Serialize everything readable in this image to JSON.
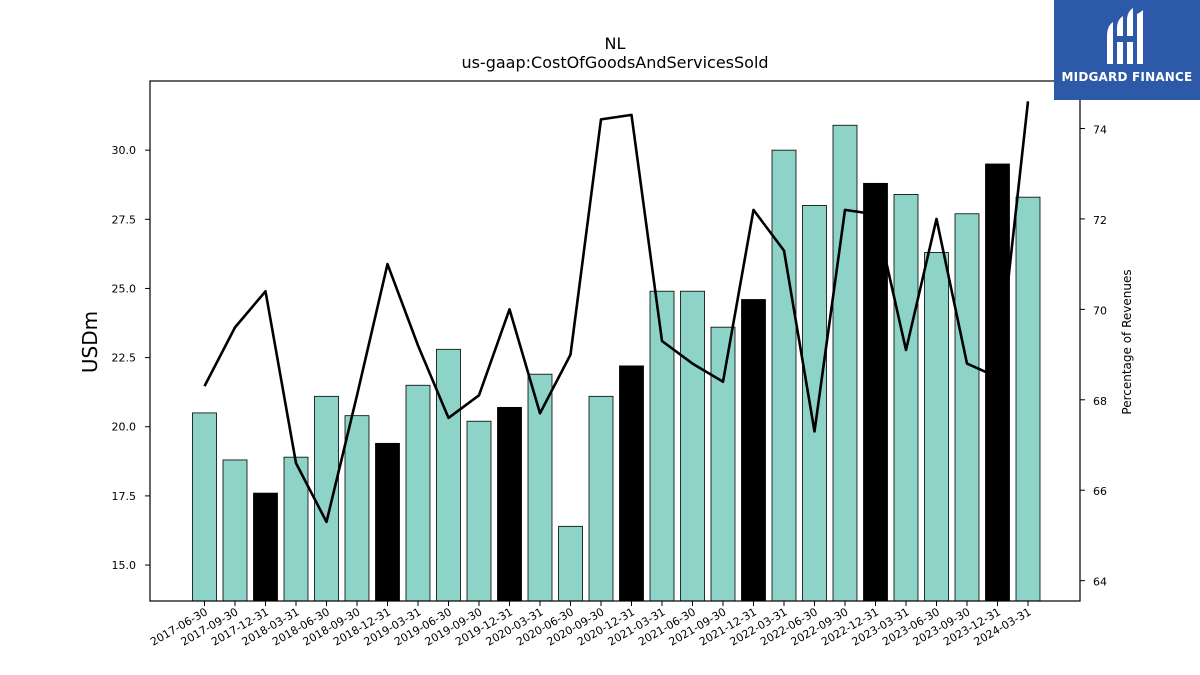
{
  "chart_data": {
    "type": "bar",
    "title": "NL",
    "subtitle": "us-gaap:CostOfGoodsAndServicesSold",
    "ylabel": "USDm",
    "y2label": "Percentage of Revenues",
    "ylim": [
      13.7,
      32.5
    ],
    "y2lim": [
      63.55,
      75.05
    ],
    "yticks": [
      "15.0",
      "17.5",
      "20.0",
      "22.5",
      "25.0",
      "27.5",
      "30.0"
    ],
    "y2ticks": [
      "64",
      "66",
      "68",
      "70",
      "72",
      "74"
    ],
    "grid": false,
    "categories": [
      "2017-06-30",
      "2017-09-30",
      "2017-12-31",
      "2018-03-31",
      "2018-06-30",
      "2018-09-30",
      "2018-12-31",
      "2019-03-31",
      "2019-06-30",
      "2019-09-30",
      "2019-12-31",
      "2020-03-31",
      "2020-06-30",
      "2020-09-30",
      "2020-12-31",
      "2021-03-31",
      "2021-06-30",
      "2021-09-30",
      "2021-12-31",
      "2022-03-31",
      "2022-06-30",
      "2022-09-30",
      "2022-12-31",
      "2023-03-31",
      "2023-06-30",
      "2023-09-30",
      "2023-12-31",
      "2024-03-31"
    ],
    "series": [
      {
        "type": "bar",
        "values": [
          20.5,
          18.8,
          17.6,
          18.9,
          21.1,
          20.4,
          19.4,
          21.5,
          22.8,
          20.2,
          20.7,
          21.9,
          16.4,
          21.1,
          22.2,
          24.9,
          24.9,
          23.6,
          24.6,
          30.0,
          28.0,
          30.9,
          28.8,
          28.4,
          26.3,
          27.7,
          29.5,
          28.3
        ],
        "fill_colors": [
          "#8ed3c7",
          "#8ed3c7",
          "#000000",
          "#8ed3c7",
          "#8ed3c7",
          "#8ed3c7",
          "#000000",
          "#8ed3c7",
          "#8ed3c7",
          "#8ed3c7",
          "#000000",
          "#8ed3c7",
          "#8ed3c7",
          "#8ed3c7",
          "#000000",
          "#8ed3c7",
          "#8ed3c7",
          "#8ed3c7",
          "#000000",
          "#8ed3c7",
          "#8ed3c7",
          "#8ed3c7",
          "#000000",
          "#8ed3c7",
          "#8ed3c7",
          "#8ed3c7",
          "#000000",
          "#8ed3c7"
        ]
      },
      {
        "type": "line",
        "axis": "right",
        "color": "#000000",
        "values": [
          68.3,
          69.6,
          70.4,
          66.6,
          65.3,
          68.1,
          71.0,
          69.2,
          67.6,
          68.1,
          70.0,
          67.7,
          69.0,
          74.2,
          74.3,
          69.3,
          68.8,
          68.4,
          72.2,
          71.3,
          67.3,
          72.2,
          72.1,
          69.1,
          72.0,
          68.8,
          68.5,
          74.6
        ]
      }
    ]
  },
  "logo": {
    "text": "MIDGARD FINANCE",
    "bg_color": "#2d5aa8"
  }
}
